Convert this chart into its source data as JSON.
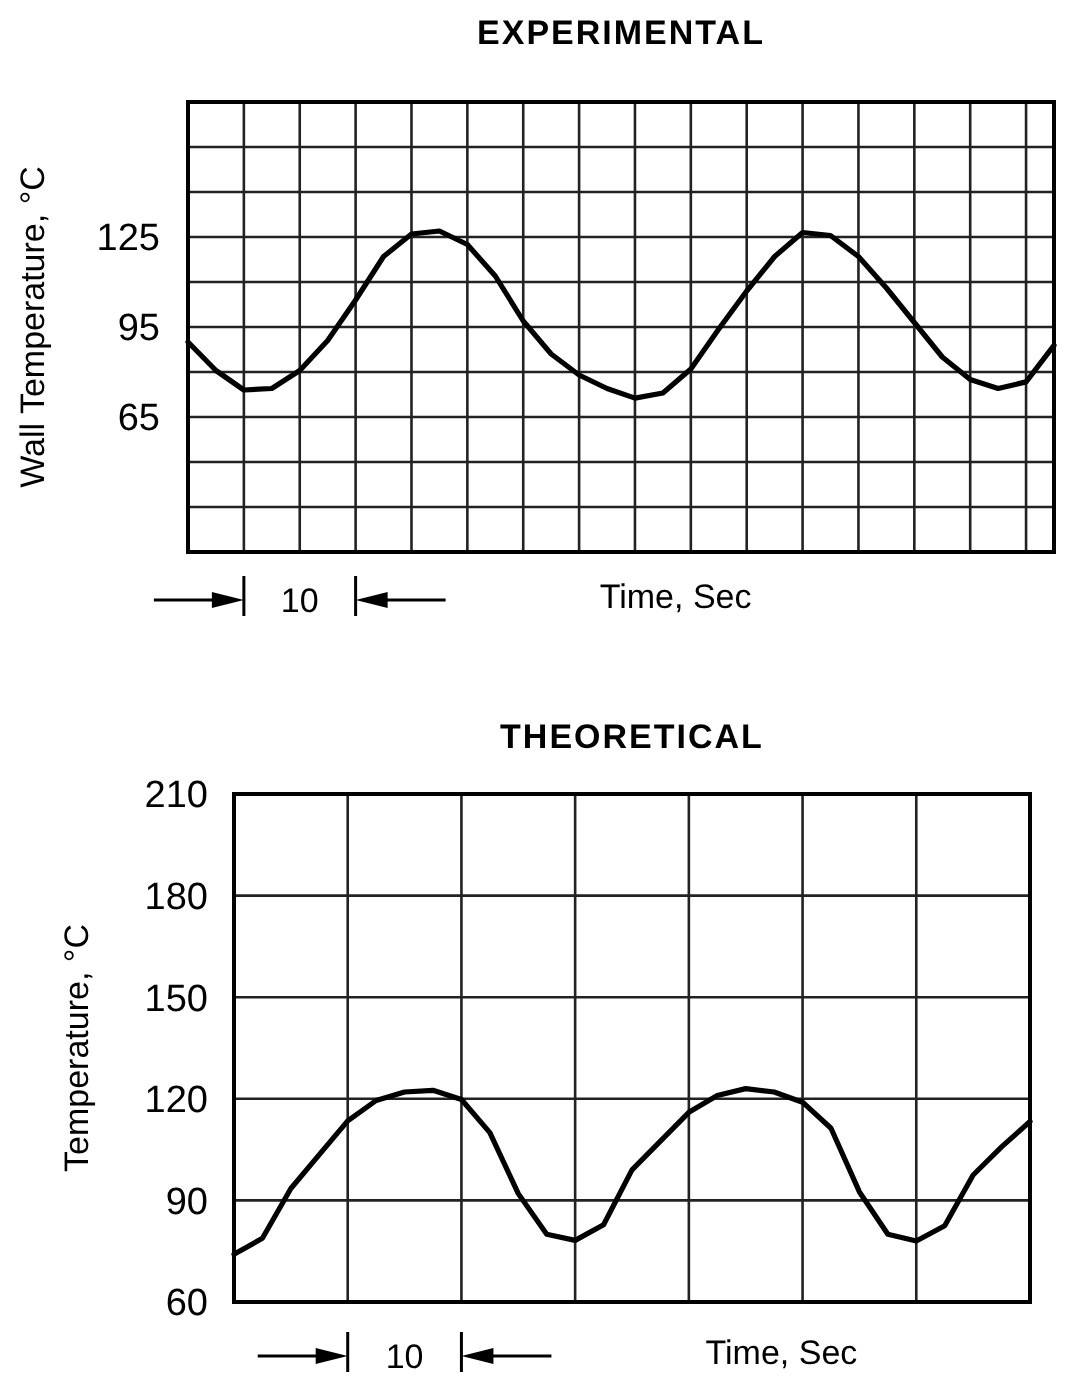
{
  "chart_data": [
    {
      "type": "line",
      "title": "EXPERIMENTAL",
      "xlabel": "Time, Sec",
      "ylabel": "Wall Temperature, °C",
      "annotations": [
        "10"
      ],
      "color": "#000000",
      "grid": true,
      "tick_labels": "y",
      "line_style": "solid",
      "categories": [
        null,
        null,
        null,
        null,
        null,
        null,
        null,
        null,
        null,
        null,
        null,
        null,
        null,
        null,
        null,
        null,
        null,
        null,
        null,
        null,
        null,
        null,
        null,
        null,
        null,
        null,
        null,
        null,
        null,
        null,
        null,
        null
      ],
      "ylim": [
        20,
        170
      ],
      "yticks": [
        {
          "value": 35,
          "label": null
        },
        {
          "value": 50,
          "label": null
        },
        65,
        {
          "value": 80,
          "label": null
        },
        95,
        {
          "value": 110,
          "label": null
        },
        125,
        {
          "value": 140,
          "label": null
        },
        {
          "value": 155,
          "label": null
        }
      ],
      "values": [
        90,
        80.5,
        74,
        74.5,
        80.5,
        90.5,
        104,
        118.5,
        126,
        127,
        122.5,
        112,
        97,
        86,
        79,
        74.5,
        71.3,
        73,
        81,
        94.3,
        107,
        118.5,
        126.5,
        125.5,
        118.5,
        108,
        96.5,
        85,
        77.5,
        74.5,
        76.7,
        88.9
      ]
    },
    {
      "type": "line",
      "title": "THEORETICAL",
      "xlabel": "Time, Sec",
      "ylabel": "Temperature, °C",
      "annotations": [
        "10"
      ],
      "color": "#000000",
      "grid": true,
      "tick_labels": "y",
      "line_style": "solid",
      "categories": [
        null,
        null,
        null,
        null,
        null,
        null,
        null,
        null,
        null,
        null,
        null,
        null,
        null,
        null,
        null,
        null,
        null,
        null,
        null,
        null,
        null,
        null,
        null,
        null,
        null,
        null,
        null,
        null,
        null
      ],
      "ylim": [
        60,
        210
      ],
      "yticks": [
        60,
        90,
        120,
        150,
        180,
        210
      ],
      "values": [
        74.1,
        78.8,
        93.5,
        103.5,
        113.5,
        119.5,
        122,
        122.5,
        119.8,
        110,
        92,
        80,
        78.2,
        82.8,
        99,
        107.5,
        116,
        121,
        123,
        122,
        119,
        111.3,
        92.5,
        80,
        78,
        82.5,
        97.5,
        105.8,
        113.3
      ]
    }
  ]
}
